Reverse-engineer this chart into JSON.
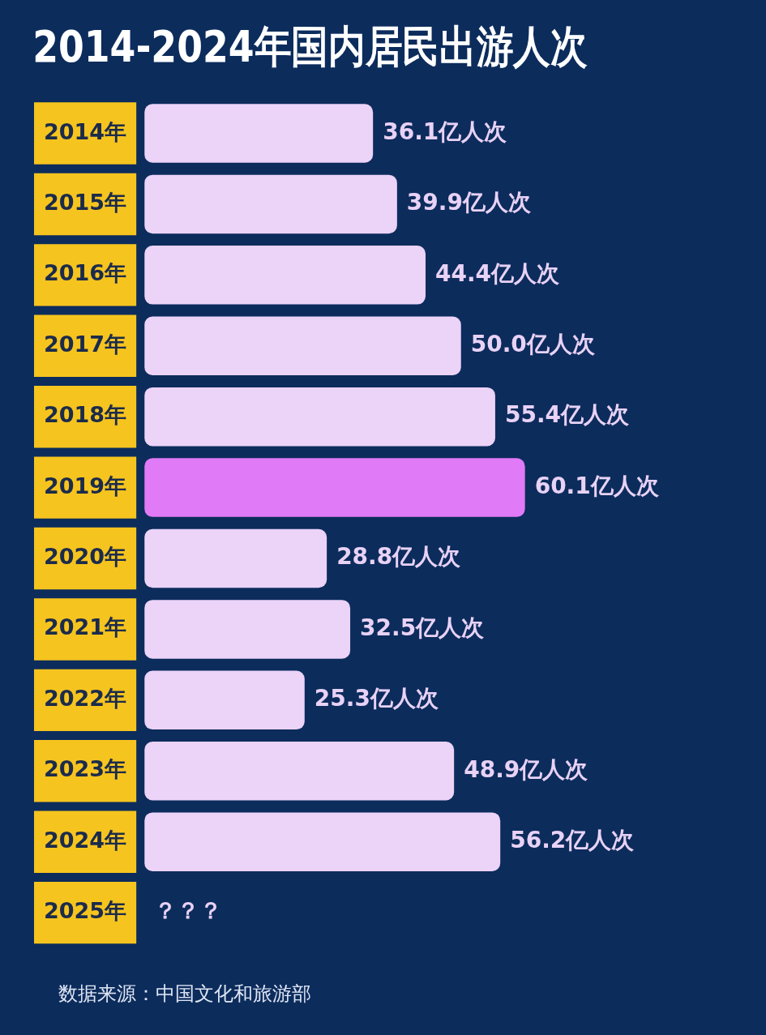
{
  "chart_data": {
    "type": "bar",
    "orientation": "horizontal",
    "title": "2014-2024年国内居民出游人次",
    "categories": [
      "2014年",
      "2015年",
      "2016年",
      "2017年",
      "2018年",
      "2019年",
      "2020年",
      "2021年",
      "2022年",
      "2023年",
      "2024年",
      "2025年"
    ],
    "values": [
      36.1,
      39.9,
      44.4,
      50.0,
      55.4,
      60.1,
      28.8,
      32.5,
      25.3,
      48.9,
      56.2,
      null
    ],
    "colors": [
      "#ecd3f8",
      "#ecd3f8",
      "#ecd3f8",
      "#ecd3f8",
      "#ecd3f8",
      "#e07af6",
      "#ecd3f8",
      "#ecd3f8",
      "#ecd3f8",
      "#ecd3f8",
      "#ecd3f8",
      "#ecd3f8"
    ],
    "value_labels": [
      "36.1亿人次",
      "39.9亿人次",
      "44.4亿人次",
      "50.0亿人次",
      "55.4亿人次",
      "60.1亿人次",
      "28.8亿人次",
      "32.5亿人次",
      "25.3亿人次",
      "48.9亿人次",
      "56.2亿人次",
      "？？？"
    ],
    "tick_labels": "y",
    "grid": false,
    "legend": false,
    "annotations": [
      "数据来源：中国文化和旅游部"
    ]
  }
}
